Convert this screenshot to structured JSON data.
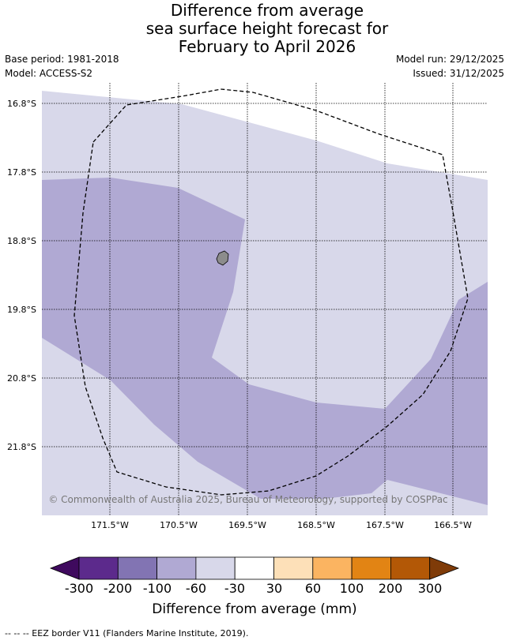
{
  "header": {
    "title_lines": [
      "Difference from average",
      "sea surface height forecast for",
      "February to April 2026"
    ],
    "base_period": "Base period: 1981-2018",
    "model": "Model: ACCESS-S2",
    "model_run": "Model run: 29/12/2025",
    "issued": "Issued: 31/12/2025"
  },
  "map": {
    "lat_labels": [
      "16.8°S",
      "17.8°S",
      "18.8°S",
      "19.8°S",
      "20.8°S",
      "21.8°S"
    ],
    "lon_labels": [
      "171.5°W",
      "170.5°W",
      "169.5°W",
      "168.5°W",
      "167.5°W",
      "166.5°W"
    ],
    "copyright": "© Commonwealth of Australia 2025, Bureau of Meteorology, supported by COSPPac",
    "colors": {
      "band_-60_-30": "#d8d8ea",
      "band_-100_-60": "#b0a9d3",
      "land": "#8c8c8c"
    }
  },
  "colorbar": {
    "ticks": [
      "-300",
      "-200",
      "-100",
      "-60",
      "-30",
      "30",
      "60",
      "100",
      "200",
      "300"
    ],
    "colors": [
      "#3f0a5e",
      "#5c2a8c",
      "#8274b3",
      "#b0a9d3",
      "#d8d8ea",
      "#ffffff",
      "#fde0b8",
      "#fbb461",
      "#e28414",
      "#b35806",
      "#7f3b08"
    ],
    "title": "Difference from average (mm)"
  },
  "footnote": "-- -- -- EEZ border V11 (Flanders Marine Institute, 2019)."
}
